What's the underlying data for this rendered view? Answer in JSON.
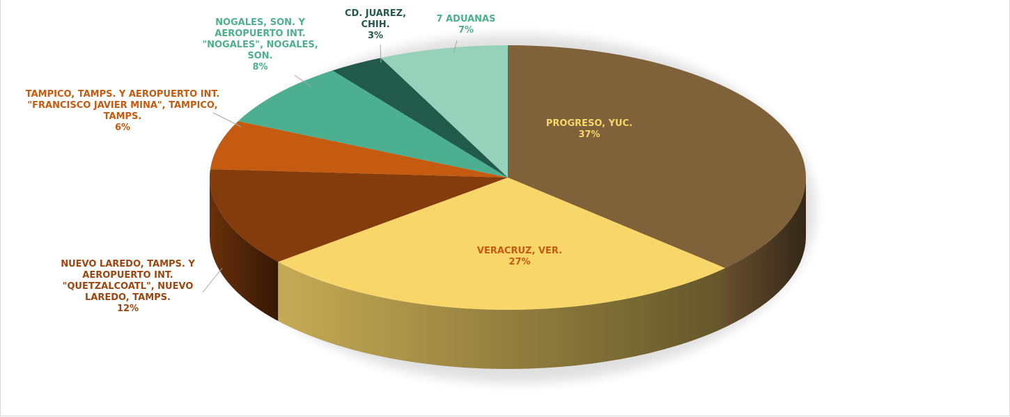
{
  "chart_data": {
    "type": "pie3d",
    "categories": [
      "PROGRESO, YUC.",
      "VERACRUZ, VER.",
      "NUEVO LAREDO, TAMPS. Y AEROPUERTO INT. \"QUETZALCOATL\", NUEVO LAREDO, TAMPS.",
      "TAMPICO, TAMPS. Y AEROPUERTO INT. \"FRANCISCO JAVIER MINA\", TAMPICO, TAMPS.",
      "NOGALES, SON. Y AEROPUERTO INT. \"NOGALES\", NOGALES, SON.",
      "CD. JUAREZ, CHIH.",
      "7 ADUANAS"
    ],
    "values": [
      37,
      27,
      12,
      6,
      8,
      3,
      7
    ],
    "value_labels": [
      "37%",
      "27%",
      "12%",
      "6%",
      "8%",
      "3%",
      "7%"
    ],
    "colors": [
      "#7f623a",
      "#f8d66a",
      "#843c0c",
      "#c55a11",
      "#4caf8f",
      "#215a4a",
      "#96d1bc"
    ],
    "label_colors": [
      "#f8d66a",
      "#c55a11",
      "#9c4610",
      "#c55a11",
      "#4caf8f",
      "#215a4a",
      "#4caf8f"
    ]
  }
}
